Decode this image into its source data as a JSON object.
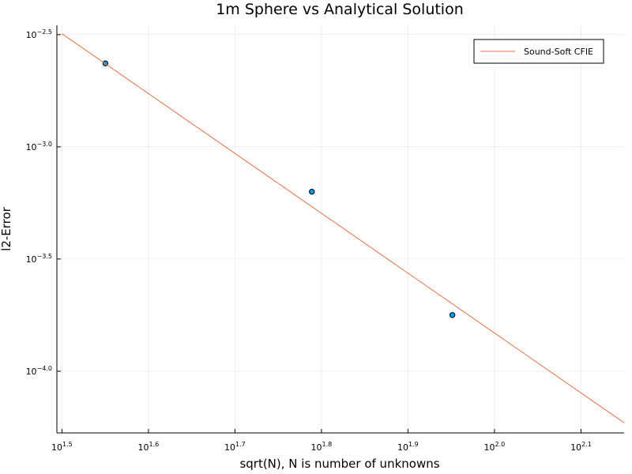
{
  "chart_data": {
    "type": "scatter",
    "title": "1m Sphere vs Analytical Solution",
    "xlabel": "sqrt(N), N is number of unknowns",
    "ylabel": "l2-Error",
    "xscale": "log10",
    "yscale": "log10",
    "xlim": [
      31.2,
      141.2
    ],
    "ylim": [
      5.31e-05,
      0.00348
    ],
    "x_ticks": [
      {
        "value": 31.623,
        "base": "10",
        "exp": "1.5"
      },
      {
        "value": 39.811,
        "base": "10",
        "exp": "1.6"
      },
      {
        "value": 50.119,
        "base": "10",
        "exp": "1.7"
      },
      {
        "value": 63.096,
        "base": "10",
        "exp": "1.8"
      },
      {
        "value": 79.433,
        "base": "10",
        "exp": "1.9"
      },
      {
        "value": 100.0,
        "base": "10",
        "exp": "2.0"
      },
      {
        "value": 125.893,
        "base": "10",
        "exp": "2.1"
      }
    ],
    "y_ticks": [
      {
        "value": 0.0031623,
        "base": "10",
        "exp": "−2.5"
      },
      {
        "value": 0.001,
        "base": "10",
        "exp": "−3.0"
      },
      {
        "value": 0.00031623,
        "base": "10",
        "exp": "−3.5"
      },
      {
        "value": 0.0001,
        "base": "10",
        "exp": "−4.0"
      }
    ],
    "grid": true,
    "legend_position": "top-right",
    "series": [
      {
        "name": "",
        "kind": "scatter",
        "color": "#009AFA",
        "x": [
          35.5,
          61.5,
          89.4
        ],
        "y": [
          0.002355,
          0.000631,
          0.000178
        ]
      },
      {
        "name": "Sound-Soft CFIE",
        "kind": "line",
        "color": "#E26F46",
        "x": [
          31.623,
          141.254
        ],
        "y": [
          0.003192,
          5.89e-05
        ]
      }
    ]
  }
}
